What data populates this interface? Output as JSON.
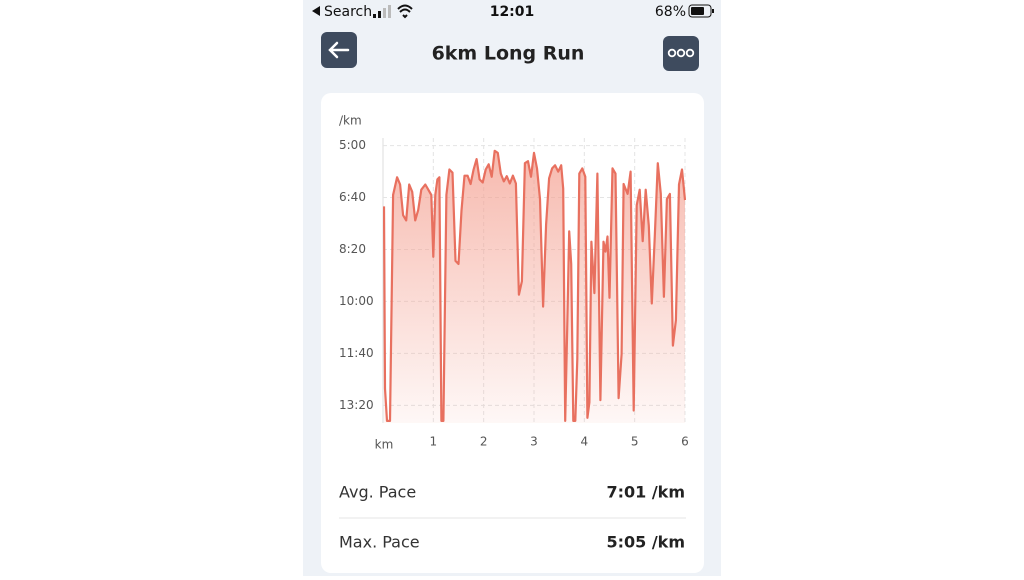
{
  "status_bar": {
    "carrier": "Search",
    "time": "12:01",
    "battery": "68%"
  },
  "header": {
    "title": "6km Long Run"
  },
  "chart_data": {
    "type": "line",
    "y_label": "/km",
    "x_label": "km",
    "line_color": "#e8705f",
    "fill_color": "#f4a293",
    "grid": true,
    "xlim": [
      0,
      6
    ],
    "xticks": [
      1,
      2,
      3,
      4,
      5,
      6
    ],
    "ylim": [
      834,
      270
    ],
    "yticks": [
      {
        "value": 300,
        "label": "5:00"
      },
      {
        "value": 400,
        "label": "6:40"
      },
      {
        "value": 500,
        "label": "8:20"
      },
      {
        "value": 600,
        "label": "10:00"
      },
      {
        "value": 700,
        "label": "11:40"
      },
      {
        "value": 800,
        "label": "13:20"
      }
    ],
    "x": [
      0.02,
      0.04,
      0.08,
      0.14,
      0.2,
      0.28,
      0.34,
      0.4,
      0.46,
      0.52,
      0.58,
      0.64,
      0.7,
      0.76,
      0.84,
      0.9,
      0.96,
      1.0,
      1.04,
      1.08,
      1.12,
      1.16,
      1.2,
      1.26,
      1.32,
      1.38,
      1.44,
      1.5,
      1.56,
      1.62,
      1.68,
      1.74,
      1.8,
      1.86,
      1.92,
      1.98,
      2.04,
      2.1,
      2.16,
      2.22,
      2.28,
      2.34,
      2.4,
      2.46,
      2.52,
      2.58,
      2.64,
      2.7,
      2.76,
      2.82,
      2.88,
      2.94,
      3.0,
      3.06,
      3.12,
      3.18,
      3.24,
      3.3,
      3.36,
      3.42,
      3.48,
      3.54,
      3.58,
      3.62,
      3.66,
      3.7,
      3.74,
      3.78,
      3.82,
      3.86,
      3.9,
      3.96,
      4.02,
      4.06,
      4.1,
      4.14,
      4.2,
      4.26,
      4.32,
      4.38,
      4.42,
      4.46,
      4.5,
      4.56,
      4.62,
      4.68,
      4.74,
      4.78,
      4.86,
      4.92,
      4.98,
      5.04,
      5.1,
      5.16,
      5.22,
      5.28,
      5.34,
      5.4,
      5.46,
      5.52,
      5.58,
      5.64,
      5.7,
      5.76,
      5.82,
      5.88,
      5.94,
      6.0
    ],
    "values": [
      417,
      768,
      830,
      830,
      395,
      361,
      375,
      434,
      444,
      375,
      389,
      444,
      424,
      385,
      375,
      385,
      395,
      514,
      395,
      365,
      361,
      830,
      830,
      395,
      346,
      352,
      522,
      528,
      425,
      358,
      358,
      374,
      346,
      326,
      365,
      371,
      346,
      336,
      360,
      310,
      314,
      354,
      369,
      359,
      373,
      358,
      373,
      587,
      561,
      334,
      330,
      360,
      314,
      344,
      403,
      610,
      452,
      363,
      344,
      338,
      350,
      338,
      383,
      830,
      652,
      465,
      528,
      830,
      830,
      711,
      354,
      344,
      360,
      824,
      794,
      485,
      584,
      354,
      790,
      485,
      504,
      475,
      593,
      344,
      354,
      786,
      701,
      374,
      393,
      350,
      810,
      415,
      385,
      484,
      385,
      454,
      604,
      474,
      334,
      393,
      591,
      403,
      393,
      685,
      636,
      375,
      346,
      405
    ]
  },
  "stats": [
    {
      "label": "Avg. Pace",
      "value": "7:01 /km"
    },
    {
      "label": "Max. Pace",
      "value": "5:05 /km"
    }
  ]
}
